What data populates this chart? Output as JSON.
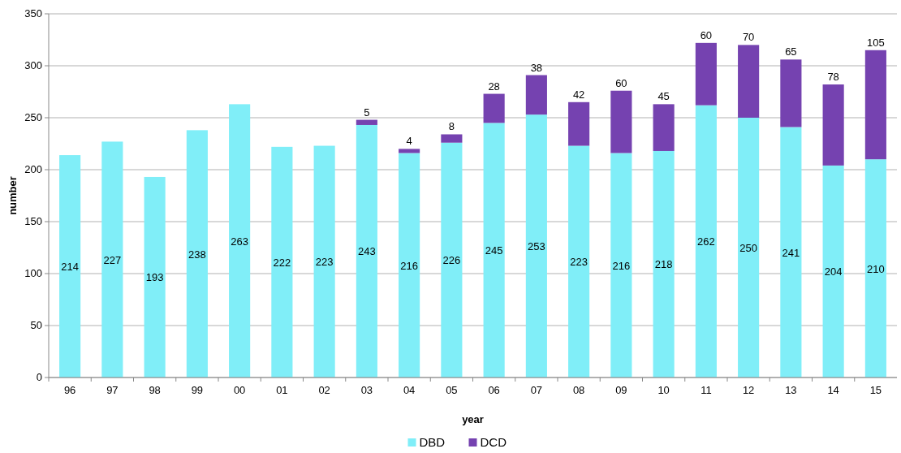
{
  "chart_data": {
    "type": "bar",
    "stacked": true,
    "xlabel": "year",
    "ylabel": "number",
    "categories": [
      "96",
      "97",
      "98",
      "99",
      "00",
      "01",
      "02",
      "03",
      "04",
      "05",
      "06",
      "07",
      "08",
      "09",
      "10",
      "11",
      "12",
      "13",
      "14",
      "15"
    ],
    "series": [
      {
        "name": "DBD",
        "color": "#80eef8",
        "values": [
          214,
          227,
          193,
          238,
          263,
          222,
          223,
          243,
          216,
          226,
          245,
          253,
          223,
          216,
          218,
          262,
          250,
          241,
          204,
          210
        ]
      },
      {
        "name": "DCD",
        "color": "#7542b0",
        "values": [
          null,
          null,
          null,
          null,
          null,
          null,
          null,
          5,
          4,
          8,
          28,
          38,
          42,
          60,
          45,
          60,
          70,
          65,
          78,
          105
        ]
      }
    ],
    "ylim": [
      0,
      350
    ],
    "yticks": [
      0,
      50,
      100,
      150,
      200,
      250,
      300,
      350
    ],
    "grid": "y",
    "legend": "bottom",
    "data_labels": true
  }
}
